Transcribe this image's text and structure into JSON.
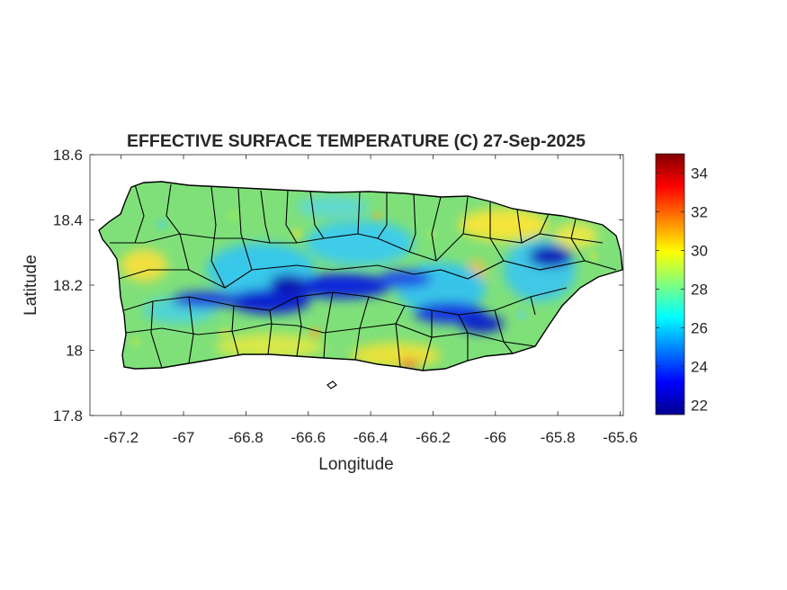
{
  "title": "EFFECTIVE SURFACE TEMPERATURE (C) 27-Sep-2025",
  "xlabel": "Longitude",
  "ylabel": "Latitude",
  "map": {
    "region": "Puerto Rico",
    "variable": "effective surface temperature",
    "units": "C",
    "date": "27-Sep-2025",
    "xlim": [
      -67.3,
      -65.59
    ],
    "ylim": [
      17.8,
      18.6
    ],
    "xticks": [
      -67.2,
      -67,
      -66.8,
      -66.6,
      -66.4,
      -66.2,
      -66,
      -65.8,
      -65.6
    ],
    "xtick_labels": [
      "-67.2",
      "-67",
      "-66.8",
      "-66.6",
      "-66.4",
      "-66.2",
      "-66",
      "-65.8",
      "-65.6"
    ],
    "yticks": [
      17.8,
      18,
      18.2,
      18.4,
      18.6
    ],
    "ytick_labels": [
      "17.8",
      "18",
      "18.2",
      "18.4",
      "18.6"
    ],
    "colormap": "jet",
    "municipality_borders": true,
    "border_color": "#000000",
    "cold_band": "central mountain ridge (Cordillera Central) and El Yunque area",
    "colorbar": {
      "min": 21.5,
      "max": 35,
      "ticks": [
        22,
        24,
        26,
        28,
        30,
        32,
        34
      ],
      "tick_labels": [
        "22",
        "24",
        "26",
        "28",
        "30",
        "32",
        "34"
      ],
      "placement": "right"
    }
  }
}
